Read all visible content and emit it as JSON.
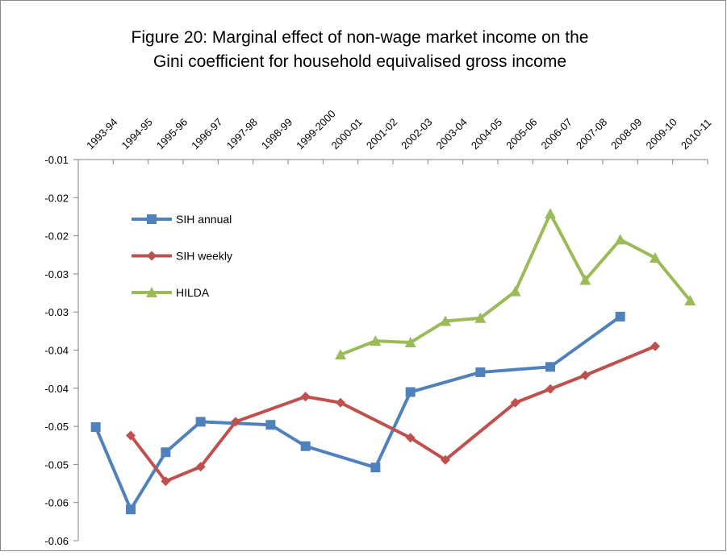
{
  "chart_data": {
    "type": "line",
    "title": [
      "Figure 20: Marginal effect of non-wage market income on the",
      "Gini coefficient for household equivalised gross income"
    ],
    "categories": [
      "1993-94",
      "1994-95",
      "1995-96",
      "1996-97",
      "1997-98",
      "1998-99",
      "1999-2000",
      "2000-01",
      "2001-02",
      "2002-03",
      "2003-04",
      "2004-05",
      "2005-06",
      "2006-07",
      "2007-08",
      "2008-09",
      "2009-10",
      "2010-11"
    ],
    "series": [
      {
        "name": "SIH annual",
        "color": "#4f81bd",
        "marker": "square",
        "values": [
          -0.0451,
          -0.0559,
          -0.0484,
          -0.0444,
          null,
          -0.0448,
          -0.0476,
          null,
          -0.0504,
          -0.0405,
          null,
          -0.0379,
          null,
          -0.0372,
          null,
          -0.0306,
          null,
          null
        ]
      },
      {
        "name": "SIH weekly",
        "color": "#c0504d",
        "marker": "diamond",
        "values": [
          null,
          -0.0462,
          -0.0522,
          -0.0503,
          -0.0444,
          null,
          -0.0411,
          -0.0419,
          null,
          -0.0465,
          -0.0494,
          null,
          -0.0419,
          -0.0401,
          -0.0383,
          null,
          -0.0345,
          null
        ]
      },
      {
        "name": "HILDA",
        "color": "#9bbb59",
        "marker": "triangle",
        "values": [
          null,
          null,
          null,
          null,
          null,
          null,
          null,
          -0.0356,
          -0.0338,
          -0.034,
          -0.0312,
          -0.0308,
          -0.0273,
          -0.0171,
          -0.0258,
          -0.0205,
          -0.0229,
          -0.0285
        ]
      }
    ],
    "connect_gaps": true,
    "ylim": [
      -0.06,
      -0.01
    ],
    "yticks": [
      -0.01,
      {
        "value": -0.015,
        "label": "-0.02"
      },
      -0.02,
      {
        "value": -0.025,
        "label": "-0.03"
      },
      -0.03,
      {
        "value": -0.035,
        "label": "-0.04"
      },
      -0.04,
      {
        "value": -0.045,
        "label": "-0.05"
      },
      -0.05,
      {
        "value": -0.055,
        "label": "-0.06"
      },
      -0.06
    ]
  }
}
